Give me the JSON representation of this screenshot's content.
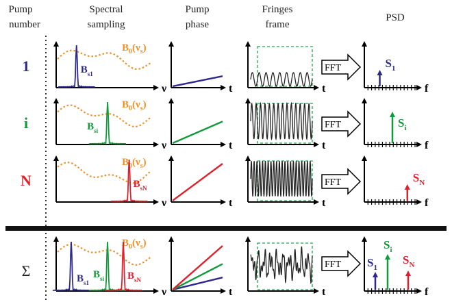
{
  "colors": {
    "row1": "#2e2a8c",
    "rowi": "#139a3c",
    "rowN": "#e0202a",
    "envelope": "#f0902a",
    "fringe": "#222222",
    "window": "#1aa84a"
  },
  "headers": {
    "pump_number": [
      "Pump",
      "number"
    ],
    "spectral": [
      "Spectral",
      "sampling"
    ],
    "phase": [
      "Pump",
      "phase"
    ],
    "fringes": [
      "Fringes",
      "frame"
    ],
    "psd": "PSD"
  },
  "rows": [
    {
      "label": "1",
      "peak_main": "B",
      "peak_sub": "s1",
      "envelope_main": "B",
      "envelope_sub": "0",
      "envelope_arg": "(ν",
      "envelope_arg_sub": "s",
      "envelope_close": ")",
      "psd_main": "S",
      "psd_sub": "1",
      "psd_position": 0.22,
      "peak_position": 0.22,
      "slope": 0.3
    },
    {
      "label": "i",
      "peak_main": "B",
      "peak_sub": "si",
      "envelope_main": "B",
      "envelope_sub": "0",
      "envelope_arg": "(ν",
      "envelope_arg_sub": "s",
      "envelope_close": ")",
      "psd_main": "S",
      "psd_sub": "i",
      "psd_position": 0.5,
      "peak_position": 0.58,
      "slope": 0.6
    },
    {
      "label": "N",
      "peak_main": "B",
      "peak_sub": "sN",
      "envelope_main": "B",
      "envelope_sub": "0",
      "envelope_arg": "(ν",
      "envelope_arg_sub": "s",
      "envelope_close": ")",
      "psd_main": "S",
      "psd_sub": "N",
      "psd_position": 0.83,
      "peak_position": 0.83,
      "slope": 1.0
    }
  ],
  "sum_row": {
    "label": "Σ",
    "peaks": [
      {
        "main": "B",
        "sub": "s1"
      },
      {
        "main": "B",
        "sub": "si"
      },
      {
        "main": "B",
        "sub": "sN"
      }
    ],
    "psd": [
      {
        "main": "S",
        "sub": "1"
      },
      {
        "main": "S",
        "sub": "i"
      },
      {
        "main": "S",
        "sub": "N"
      }
    ],
    "envelope_main": "B",
    "envelope_sub": "0",
    "envelope_arg": "(ν",
    "envelope_arg_sub": "s",
    "envelope_close": ")"
  },
  "axis_labels": {
    "nu": "ν",
    "t": "t",
    "f": "f"
  },
  "fft_label": "FFT"
}
